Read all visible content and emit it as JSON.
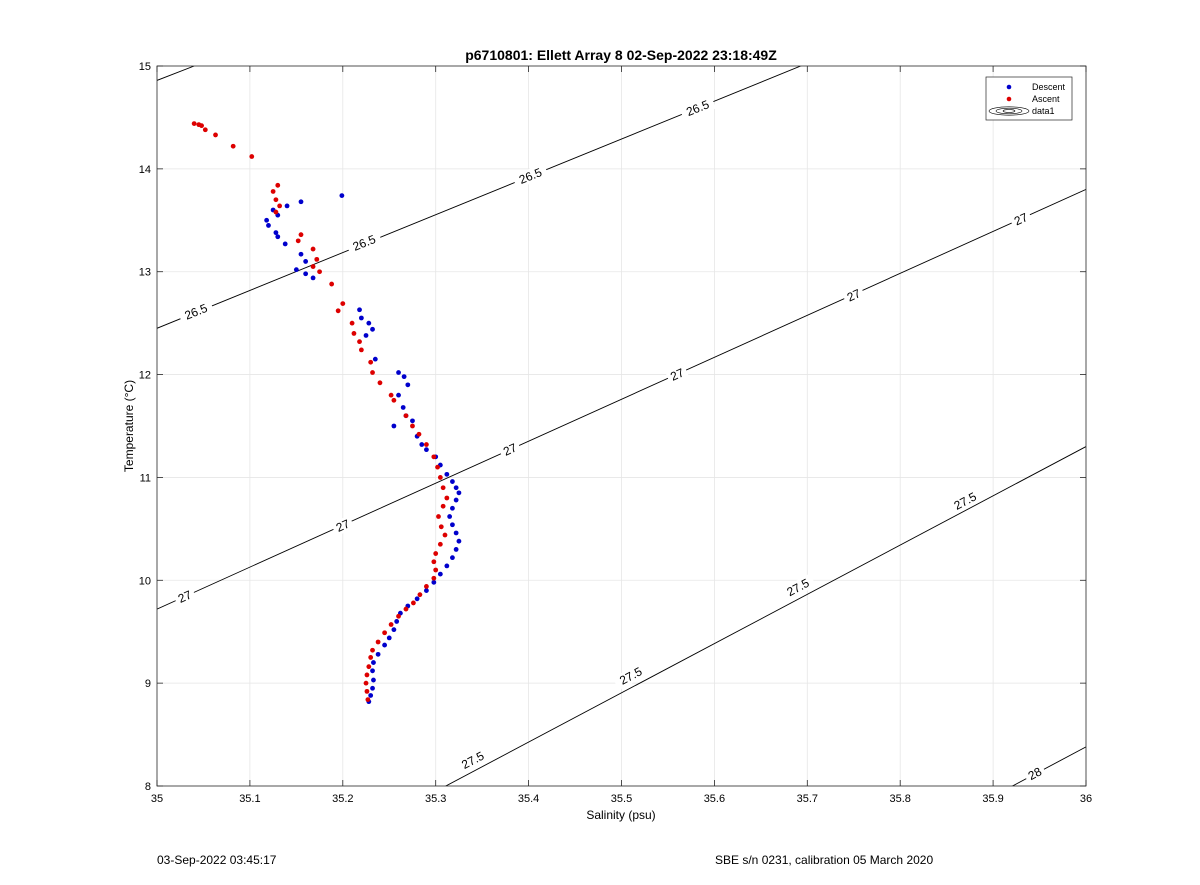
{
  "footer": {
    "timestamp": "03-Sep-2022 03:45:17",
    "sensor_note": "SBE s/n 0231, calibration 05 March 2020"
  },
  "chart_data": {
    "type": "scatter",
    "title": "p6710801: Ellett Array 8 02-Sep-2022 23:18:49Z",
    "xlabel": "Salinity (psu)",
    "ylabel": "Temperature (°C)",
    "xlim": [
      35,
      36
    ],
    "ylim": [
      8,
      15
    ],
    "xticks": [
      35,
      35.1,
      35.2,
      35.3,
      35.4,
      35.5,
      35.6,
      35.7,
      35.8,
      35.9,
      36
    ],
    "xtick_labels": [
      "35",
      "35.1",
      "35.2",
      "35.3",
      "35.4",
      "35.5",
      "35.6",
      "35.7",
      "35.8",
      "35.9",
      "36"
    ],
    "yticks": [
      8,
      9,
      10,
      11,
      12,
      13,
      14,
      15
    ],
    "ytick_labels": [
      "8",
      "9",
      "10",
      "11",
      "12",
      "13",
      "14",
      "15"
    ],
    "grid": true,
    "legend_placement": "top-right",
    "legend": [
      "Descent",
      "Ascent",
      "data1"
    ],
    "series": [
      {
        "name": "Descent",
        "color": "#0000cc",
        "points": [
          [
            35.199,
            13.74
          ],
          [
            35.155,
            13.68
          ],
          [
            35.14,
            13.64
          ],
          [
            35.125,
            13.6
          ],
          [
            35.13,
            13.55
          ],
          [
            35.118,
            13.5
          ],
          [
            35.12,
            13.45
          ],
          [
            35.128,
            13.38
          ],
          [
            35.13,
            13.34
          ],
          [
            35.138,
            13.27
          ],
          [
            35.155,
            13.17
          ],
          [
            35.16,
            13.1
          ],
          [
            35.15,
            13.02
          ],
          [
            35.16,
            12.98
          ],
          [
            35.168,
            12.94
          ],
          [
            35.218,
            12.63
          ],
          [
            35.22,
            12.55
          ],
          [
            35.228,
            12.5
          ],
          [
            35.232,
            12.44
          ],
          [
            35.225,
            12.38
          ],
          [
            35.235,
            12.15
          ],
          [
            35.26,
            12.02
          ],
          [
            35.266,
            11.98
          ],
          [
            35.27,
            11.9
          ],
          [
            35.26,
            11.8
          ],
          [
            35.265,
            11.68
          ],
          [
            35.268,
            11.6
          ],
          [
            35.275,
            11.55
          ],
          [
            35.255,
            11.5
          ],
          [
            35.28,
            11.4
          ],
          [
            35.285,
            11.32
          ],
          [
            35.29,
            11.27
          ],
          [
            35.3,
            11.2
          ],
          [
            35.305,
            11.12
          ],
          [
            35.312,
            11.03
          ],
          [
            35.318,
            10.96
          ],
          [
            35.322,
            10.9
          ],
          [
            35.325,
            10.85
          ],
          [
            35.322,
            10.78
          ],
          [
            35.318,
            10.7
          ],
          [
            35.315,
            10.62
          ],
          [
            35.318,
            10.54
          ],
          [
            35.322,
            10.46
          ],
          [
            35.325,
            10.38
          ],
          [
            35.322,
            10.3
          ],
          [
            35.318,
            10.22
          ],
          [
            35.312,
            10.14
          ],
          [
            35.305,
            10.06
          ],
          [
            35.298,
            9.98
          ],
          [
            35.29,
            9.9
          ],
          [
            35.28,
            9.82
          ],
          [
            35.27,
            9.75
          ],
          [
            35.262,
            9.68
          ],
          [
            35.258,
            9.6
          ],
          [
            35.255,
            9.52
          ],
          [
            35.25,
            9.44
          ],
          [
            35.245,
            9.37
          ],
          [
            35.238,
            9.28
          ],
          [
            35.233,
            9.2
          ],
          [
            35.232,
            9.12
          ],
          [
            35.233,
            9.03
          ],
          [
            35.232,
            8.95
          ],
          [
            35.23,
            8.88
          ],
          [
            35.228,
            8.82
          ]
        ]
      },
      {
        "name": "Ascent",
        "color": "#dd0000",
        "points": [
          [
            35.04,
            14.44
          ],
          [
            35.045,
            14.43
          ],
          [
            35.048,
            14.42
          ],
          [
            35.052,
            14.38
          ],
          [
            35.063,
            14.33
          ],
          [
            35.082,
            14.22
          ],
          [
            35.102,
            14.12
          ],
          [
            35.13,
            13.84
          ],
          [
            35.125,
            13.78
          ],
          [
            35.128,
            13.7
          ],
          [
            35.132,
            13.64
          ],
          [
            35.128,
            13.58
          ],
          [
            35.155,
            13.36
          ],
          [
            35.152,
            13.3
          ],
          [
            35.168,
            13.22
          ],
          [
            35.172,
            13.12
          ],
          [
            35.168,
            13.05
          ],
          [
            35.175,
            13.0
          ],
          [
            35.188,
            12.88
          ],
          [
            35.2,
            12.69
          ],
          [
            35.195,
            12.62
          ],
          [
            35.21,
            12.5
          ],
          [
            35.212,
            12.4
          ],
          [
            35.218,
            12.32
          ],
          [
            35.22,
            12.24
          ],
          [
            35.23,
            12.12
          ],
          [
            35.232,
            12.02
          ],
          [
            35.24,
            11.92
          ],
          [
            35.252,
            11.8
          ],
          [
            35.255,
            11.75
          ],
          [
            35.268,
            11.6
          ],
          [
            35.275,
            11.5
          ],
          [
            35.282,
            11.42
          ],
          [
            35.29,
            11.32
          ],
          [
            35.298,
            11.2
          ],
          [
            35.302,
            11.1
          ],
          [
            35.305,
            11.0
          ],
          [
            35.308,
            10.9
          ],
          [
            35.312,
            10.8
          ],
          [
            35.308,
            10.72
          ],
          [
            35.303,
            10.62
          ],
          [
            35.306,
            10.52
          ],
          [
            35.31,
            10.44
          ],
          [
            35.305,
            10.35
          ],
          [
            35.3,
            10.26
          ],
          [
            35.298,
            10.18
          ],
          [
            35.3,
            10.1
          ],
          [
            35.298,
            10.02
          ],
          [
            35.29,
            9.94
          ],
          [
            35.283,
            9.86
          ],
          [
            35.276,
            9.78
          ],
          [
            35.268,
            9.72
          ],
          [
            35.26,
            9.65
          ],
          [
            35.252,
            9.57
          ],
          [
            35.245,
            9.49
          ],
          [
            35.238,
            9.4
          ],
          [
            35.232,
            9.32
          ],
          [
            35.23,
            9.25
          ],
          [
            35.228,
            9.16
          ],
          [
            35.226,
            9.08
          ],
          [
            35.225,
            9.0
          ],
          [
            35.226,
            8.92
          ],
          [
            35.227,
            8.84
          ]
        ]
      }
    ],
    "contours": [
      {
        "level": "26.5",
        "points": [
          [
            35.0,
            12.45
          ],
          [
            35.72,
            15.1
          ]
        ],
        "label_positions": [
          [
            35.042,
            12.61
          ],
          [
            35.223,
            13.28
          ],
          [
            35.402,
            13.93
          ],
          [
            35.582,
            14.59
          ]
        ]
      },
      {
        "level": "27",
        "points": [
          [
            35.0,
            9.72
          ],
          [
            36.0,
            13.8
          ]
        ],
        "label_positions": [
          [
            35.03,
            9.84
          ],
          [
            35.2,
            10.53
          ],
          [
            35.38,
            11.27
          ],
          [
            35.56,
            12.0
          ],
          [
            35.75,
            12.77
          ],
          [
            35.93,
            13.51
          ]
        ]
      },
      {
        "level": "27.5",
        "points": [
          [
            35.29,
            7.9
          ],
          [
            36.0,
            11.3
          ]
        ],
        "label_positions": [
          [
            35.34,
            8.25
          ],
          [
            35.51,
            9.07
          ],
          [
            35.69,
            9.93
          ],
          [
            35.87,
            10.77
          ]
        ]
      },
      {
        "level": "28",
        "points": [
          [
            35.9,
            7.9
          ],
          [
            36.0,
            8.38
          ]
        ],
        "label_positions": [
          [
            35.945,
            8.12
          ]
        ]
      },
      {
        "level": "26.5",
        "points": [
          [
            35.0,
            14.86
          ],
          [
            35.04,
            15.0
          ]
        ],
        "label_positions": []
      }
    ]
  }
}
